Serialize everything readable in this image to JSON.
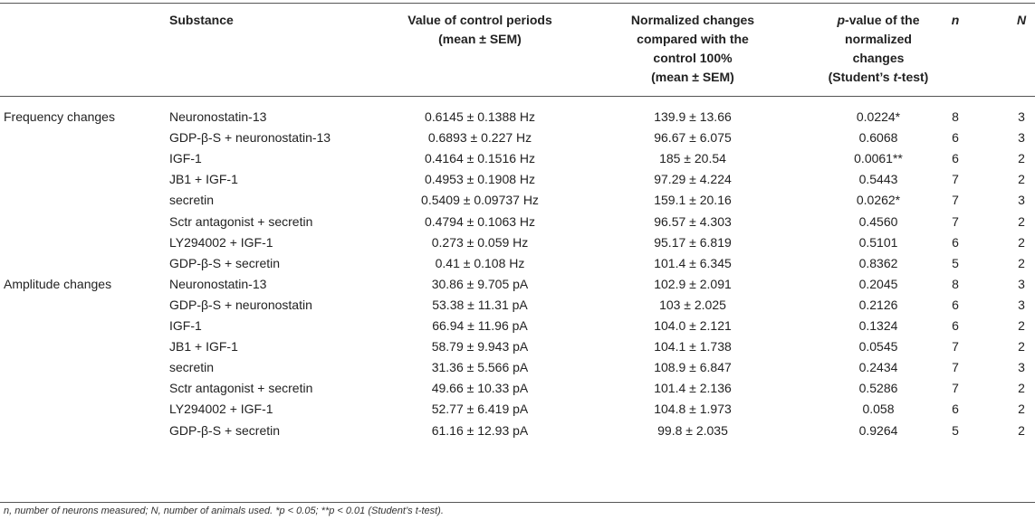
{
  "header": {
    "substance": "Substance",
    "control_line1": "Value of control periods",
    "control_line2": "(mean ± SEM)",
    "norm_line1": "Normalized changes",
    "norm_line2": "compared with the",
    "norm_line3": "control 100%",
    "norm_line4": "(mean ± SEM)",
    "pval_p": "p",
    "pval_line1_rest": "-value of the",
    "pval_line2": "normalized",
    "pval_line3": "changes",
    "pval_line4_pre": "(Student’s ",
    "pval_line4_t": "t",
    "pval_line4_post": "-test)",
    "n": "n",
    "N": "N"
  },
  "rows": [
    {
      "group": "Frequency changes",
      "substance": "Neuronostatin-13",
      "control": "0.6145 ± 0.1388 Hz",
      "norm": "139.9 ± 13.66",
      "pval": "0.0224*",
      "n": "8",
      "N": "3"
    },
    {
      "group": "",
      "substance": "GDP-β-S + neuronostatin-13",
      "control": "0.6893 ± 0.227 Hz",
      "norm": "96.67 ± 6.075",
      "pval": "0.6068",
      "n": "6",
      "N": "3"
    },
    {
      "group": "",
      "substance": "IGF-1",
      "control": "0.4164 ± 0.1516 Hz",
      "norm": "185 ± 20.54",
      "pval": "0.0061**",
      "n": "6",
      "N": "2"
    },
    {
      "group": "",
      "substance": "JB1 + IGF-1",
      "control": "0.4953 ± 0.1908 Hz",
      "norm": "97.29 ± 4.224",
      "pval": "0.5443",
      "n": "7",
      "N": "2"
    },
    {
      "group": "",
      "substance": "secretin",
      "control": "0.5409 ± 0.09737 Hz",
      "norm": "159.1 ± 20.16",
      "pval": "0.0262*",
      "n": "7",
      "N": "3"
    },
    {
      "group": "",
      "substance": "Sctr antagonist + secretin",
      "control": "0.4794 ± 0.1063 Hz",
      "norm": "96.57 ± 4.303",
      "pval": "0.4560",
      "n": "7",
      "N": "2"
    },
    {
      "group": "",
      "substance": "LY294002 + IGF-1",
      "control": "0.273 ± 0.059 Hz",
      "norm": "95.17 ± 6.819",
      "pval": "0.5101",
      "n": "6",
      "N": "2"
    },
    {
      "group": "",
      "substance": "GDP-β-S + secretin",
      "control": "0.41 ± 0.108 Hz",
      "norm": "101.4 ± 6.345",
      "pval": "0.8362",
      "n": "5",
      "N": "2"
    },
    {
      "group": "Amplitude changes",
      "substance": "Neuronostatin-13",
      "control": "30.86 ± 9.705 pA",
      "norm": "102.9 ± 2.091",
      "pval": "0.2045",
      "n": "8",
      "N": "3"
    },
    {
      "group": "",
      "substance": "GDP-β-S + neuronostatin",
      "control": "53.38 ± 11.31 pA",
      "norm": "103 ± 2.025",
      "pval": "0.2126",
      "n": "6",
      "N": "3"
    },
    {
      "group": "",
      "substance": "IGF-1",
      "control": "66.94 ± 11.96 pA",
      "norm": "104.0 ± 2.121",
      "pval": "0.1324",
      "n": "6",
      "N": "2"
    },
    {
      "group": "",
      "substance": "JB1 + IGF-1",
      "control": "58.79 ± 9.943 pA",
      "norm": "104.1 ± 1.738",
      "pval": "0.0545",
      "n": "7",
      "N": "2"
    },
    {
      "group": "",
      "substance": "secretin",
      "control": "31.36 ± 5.566 pA",
      "norm": "108.9 ± 6.847",
      "pval": "0.2434",
      "n": "7",
      "N": "3"
    },
    {
      "group": "",
      "substance": "Sctr antagonist + secretin",
      "control": "49.66 ± 10.33 pA",
      "norm": "101.4 ± 2.136",
      "pval": "0.5286",
      "n": "7",
      "N": "2"
    },
    {
      "group": "",
      "substance": "LY294002 + IGF-1",
      "control": "52.77 ± 6.419 pA",
      "norm": "104.8 ± 1.973",
      "pval": "0.058",
      "n": "6",
      "N": "2"
    },
    {
      "group": "",
      "substance": "GDP-β-S + secretin",
      "control": "61.16 ± 12.93 pA",
      "norm": "99.8 ± 2.035",
      "pval": "0.9264",
      "n": "5",
      "N": "2"
    }
  ],
  "footnote": "n, number of neurons measured; N, number of animals used. *p < 0.05; **p < 0.01 (Student’s t-test)."
}
